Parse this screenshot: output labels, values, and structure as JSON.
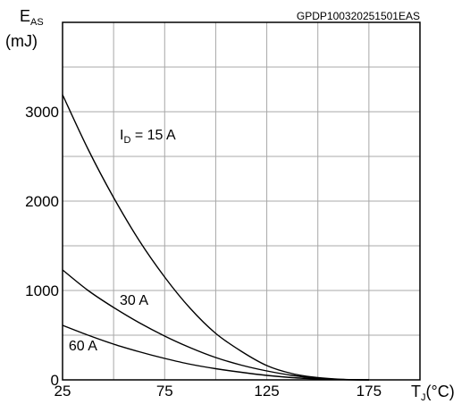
{
  "chart_data": {
    "type": "line",
    "code": "GPDP100320251501EAS",
    "ylabel": {
      "main": "E",
      "sub": "AS",
      "unit": "(mJ)"
    },
    "xlabel": {
      "main": "T",
      "sub": "J",
      "unit": "(°C)"
    },
    "xlim": [
      25,
      200
    ],
    "ylim": [
      0,
      4000
    ],
    "x_ticks": [
      25,
      75,
      125,
      175
    ],
    "y_ticks": [
      0,
      1000,
      2000,
      3000
    ],
    "x_grid": [
      25,
      50,
      75,
      100,
      125,
      150,
      175,
      200
    ],
    "y_grid": [
      0,
      500,
      1000,
      1500,
      2000,
      2500,
      3000,
      3500,
      4000
    ],
    "id_label": {
      "main": "I",
      "sub": "D",
      "rest": " = 15 A"
    },
    "series": [
      {
        "name": "I_D = 15 A",
        "x": [
          25,
          37.5,
          50,
          62.5,
          75,
          87.5,
          100,
          112.5,
          125,
          137.5,
          150,
          162.5,
          175
        ],
        "y": [
          3190,
          2580,
          2040,
          1560,
          1150,
          800,
          520,
          320,
          160,
          70,
          25,
          5,
          0
        ]
      },
      {
        "name": "30 A",
        "x": [
          25,
          37.5,
          50,
          62.5,
          75,
          87.5,
          100,
          112.5,
          125,
          137.5,
          150,
          162.5,
          175
        ],
        "y": [
          1230,
          1000,
          810,
          640,
          490,
          360,
          250,
          165,
          100,
          50,
          18,
          4,
          0
        ]
      },
      {
        "name": "60 A",
        "x": [
          25,
          37.5,
          50,
          62.5,
          75,
          87.5,
          100,
          112.5,
          125,
          137.5,
          150,
          162.5,
          175
        ],
        "y": [
          610,
          500,
          400,
          315,
          240,
          175,
          125,
          85,
          50,
          25,
          10,
          2,
          0
        ]
      }
    ],
    "curve_labels": [
      {
        "text": "30 A",
        "x": 53,
        "y": 840
      },
      {
        "text": "60 A",
        "x": 28,
        "y": 330
      }
    ]
  }
}
